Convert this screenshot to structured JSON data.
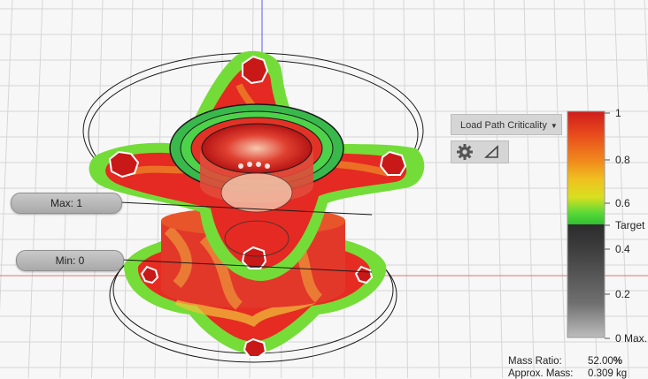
{
  "sliders": {
    "max_label": "Max: 1",
    "min_label": "Min: 0"
  },
  "toolbar": {
    "mode_label": "Load Path Criticality",
    "dropdown_caret": "▼",
    "icons": [
      "gear-icon",
      "triangle-icon"
    ]
  },
  "legend": {
    "labels": [
      "1",
      "0.8",
      "0.6",
      "Target",
      "0.4",
      "0.2",
      "0 Max."
    ]
  },
  "stats": {
    "mass_ratio_label": "Mass Ratio:",
    "mass_ratio_value": "52.00",
    "mass_ratio_unit": "%",
    "approx_mass_label": "Approx. Mass:",
    "approx_mass_value": "0.309 kg"
  },
  "colors": {
    "critical": "#e8231f",
    "medium": "#f0a020",
    "low": "#7de03a",
    "grid": "#d2d2d2",
    "x_axis": "#e07070",
    "z_axis": "#5a5aff"
  }
}
